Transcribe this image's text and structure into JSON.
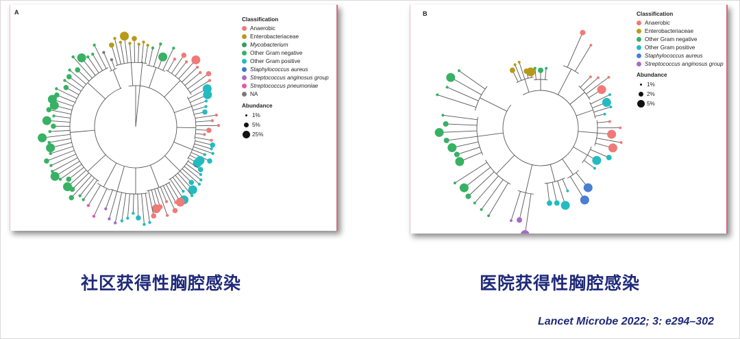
{
  "colors": {
    "anaerobic": "#f07a78",
    "enterobacteriaceae": "#b89a1a",
    "mycobacterium": "#2f9e64",
    "other_gram_negative": "#37b163",
    "other_gram_positive": "#22bcc0",
    "staph_aureus": "#4a7fd0",
    "strep_anginosus": "#a66cc4",
    "strep_pneumoniae": "#e25aa8",
    "na": "#7a7a7a"
  },
  "panel_a": {
    "label": "A",
    "legend_title": "Classification",
    "classes": [
      {
        "label": "Anaerobic",
        "color": "#f07a78",
        "italic": false
      },
      {
        "label": "Enterobacteriaceae",
        "color": "#b89a1a",
        "italic": false
      },
      {
        "label": "Mycobacterium",
        "color": "#2f9e64",
        "italic": true
      },
      {
        "label": "Other Gram negative",
        "color": "#37b163",
        "italic": false
      },
      {
        "label": "Other Gram positive",
        "color": "#22bcc0",
        "italic": false
      },
      {
        "label": "Staphylococcus aureus",
        "color": "#3a78c8",
        "italic": true
      },
      {
        "label": "Streptococcus anginosus group",
        "color": "#a66cc4",
        "italic": true
      },
      {
        "label": "Streptococcus pneumoniae",
        "color": "#e25aa8",
        "italic": true
      },
      {
        "label": "NA",
        "color": "#7a7a7a",
        "italic": false
      }
    ],
    "abundance_title": "Abundance",
    "abundance": [
      {
        "label": "1%"
      },
      {
        "label": "5%"
      },
      {
        "label": "25%"
      }
    ]
  },
  "panel_b": {
    "label": "B",
    "legend_title": "Classification",
    "classes": [
      {
        "label": "Anaerobic",
        "color": "#f07a78",
        "italic": false
      },
      {
        "label": "Enterobacteriaceae",
        "color": "#b89a1a",
        "italic": false
      },
      {
        "label": "Other Gram negative",
        "color": "#37b163",
        "italic": false
      },
      {
        "label": "Other Gram positive",
        "color": "#22bcc0",
        "italic": false
      },
      {
        "label": "Staphylococcus aureus",
        "color": "#4a7fd0",
        "italic": true
      },
      {
        "label": "Streptococcus anginosus group",
        "color": "#a66cc4",
        "italic": true
      }
    ],
    "abundance_title": "Abundance",
    "abundance": [
      {
        "label": "1%"
      },
      {
        "label": "2%"
      },
      {
        "label": "5%"
      }
    ]
  },
  "caption_left": "社区获得性胸腔感染",
  "caption_right": "医院获得性胸腔感染",
  "citation": "Lancet Microbe 2022; 3: e294–302"
}
